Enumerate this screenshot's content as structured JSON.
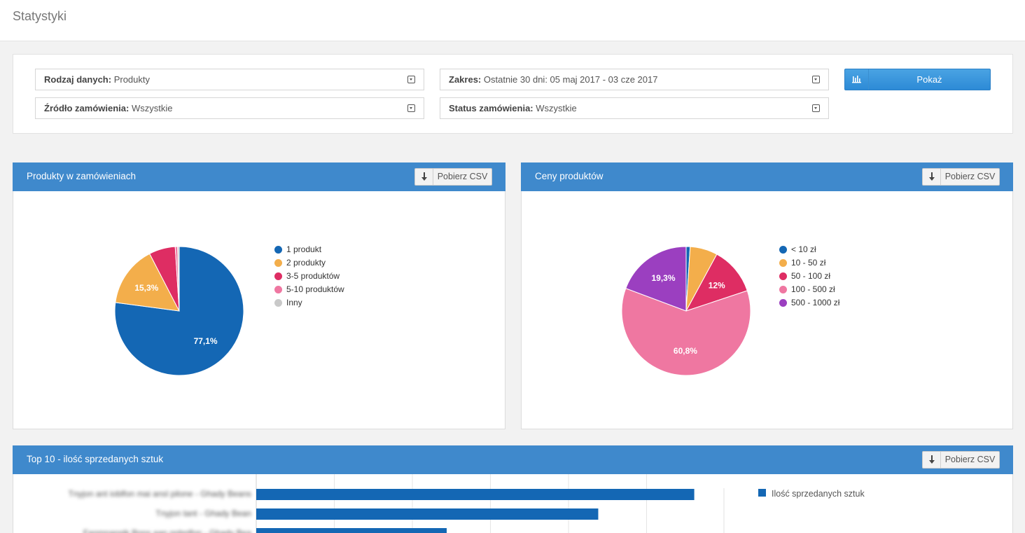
{
  "header": {
    "title": "Statystyki"
  },
  "filters": {
    "data_type": {
      "label": "Rodzaj danych:",
      "value": "Produkty"
    },
    "range": {
      "label": "Zakres:",
      "value": "Ostatnie 30 dni: 05 maj 2017 - 03 cze 2017"
    },
    "order_source": {
      "label": "Źródło zamówienia:",
      "value": "Wszystkie"
    },
    "order_status": {
      "label": "Status zamówienia:",
      "value": "Wszystkie"
    },
    "show_label": "Pokaż"
  },
  "panels": {
    "products_in_orders": {
      "title": "Produkty w zamówieniach",
      "csv_label": "Pobierz CSV"
    },
    "product_prices": {
      "title": "Ceny produktów",
      "csv_label": "Pobierz CSV"
    },
    "top10": {
      "title": "Top 10 - ilość sprzedanych sztuk",
      "csv_label": "Pobierz CSV"
    }
  },
  "chart_data": [
    {
      "type": "pie",
      "title": "Produkty w zamówieniach",
      "categories": [
        "1 produkt",
        "2 produkty",
        "3-5 produktów",
        "5-10 produktów",
        "Inny"
      ],
      "values": [
        77.1,
        15.3,
        6.6,
        0.6,
        0.4
      ],
      "labels": [
        "77,1%",
        "15,3%",
        "",
        "",
        ""
      ],
      "colors": [
        "#1467b4",
        "#f3ae4b",
        "#de2d63",
        "#ef77a1",
        "#c9c9c9"
      ],
      "legend": "right"
    },
    {
      "type": "pie",
      "title": "Ceny produktów",
      "categories": [
        "< 10 zł",
        "10 - 50 zł",
        "50 - 100 zł",
        "100 - 500 zł",
        "500 - 1000 zł"
      ],
      "values": [
        1.0,
        6.9,
        12.0,
        60.8,
        19.3
      ],
      "labels": [
        "",
        "",
        "12%",
        "60,8%",
        "19,3%"
      ],
      "colors": [
        "#1467b4",
        "#f3ae4b",
        "#de2d63",
        "#ef77a1",
        "#9b3fc0"
      ],
      "legend": "right"
    },
    {
      "type": "bar",
      "orientation": "horizontal",
      "title": "Top 10 - ilość sprzedanych sztuk",
      "series": [
        {
          "name": "Ilość sprzedanych sztuk",
          "values": [
            552,
            431,
            240
          ],
          "color": "#1467b4"
        }
      ],
      "categories": [
        "Tnyjon ant ioblfon mai ansl pilone - Ghady Beans",
        "Tnyjon tant - Ghady Bean",
        "Fanmnanstk Bnns aan nnbnlfon - Ghady Bea"
      ],
      "xlim": [
        0,
        600
      ],
      "grid": true,
      "legend": "right"
    }
  ]
}
